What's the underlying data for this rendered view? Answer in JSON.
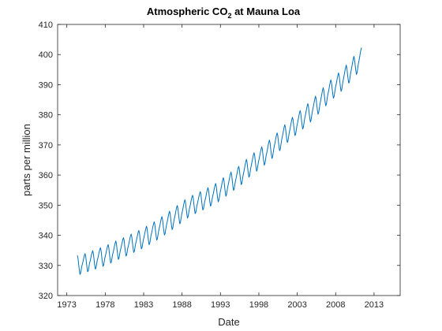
{
  "chart_data": {
    "type": "line",
    "title": {
      "pre": "Atmospheric CO",
      "sub": "2",
      "post": " at Mauna Loa"
    },
    "xlabel": "Date",
    "ylabel": "parts per million",
    "xlim": [
      1971.8,
      2016.4
    ],
    "ylim": [
      320,
      410
    ],
    "x_ticks": [
      1973,
      1978,
      1983,
      1988,
      1993,
      1998,
      2003,
      2008,
      2013
    ],
    "y_ticks": [
      320,
      330,
      340,
      350,
      360,
      370,
      380,
      390,
      400,
      410
    ],
    "grid": false,
    "series": [
      {
        "color": "#0072bd",
        "x_start": 1974.375,
        "x_step": 0.083333,
        "values": [
          333.3,
          332.3,
          330.3,
          328.5,
          327.0,
          327.4,
          328.7,
          329.8,
          330.6,
          331.5,
          332.5,
          333.4,
          333.9,
          333.0,
          331.1,
          329.3,
          327.9,
          328.2,
          329.5,
          330.7,
          331.5,
          332.5,
          333.5,
          334.3,
          334.9,
          333.9,
          332.0,
          330.2,
          328.8,
          329.1,
          330.4,
          331.6,
          332.4,
          333.4,
          334.4,
          335.3,
          335.9,
          334.9,
          332.9,
          331.1,
          329.7,
          330.1,
          331.4,
          332.6,
          333.4,
          334.4,
          335.4,
          336.3,
          336.9,
          336.0,
          334.0,
          332.2,
          330.8,
          331.1,
          332.4,
          333.6,
          334.4,
          335.4,
          336.5,
          337.4,
          338.1,
          337.2,
          335.2,
          333.4,
          332.0,
          332.4,
          333.7,
          334.9,
          335.7,
          336.7,
          337.7,
          338.6,
          339.2,
          338.3,
          336.3,
          334.5,
          333.1,
          333.5,
          334.8,
          336.0,
          336.8,
          337.8,
          338.9,
          339.8,
          340.4,
          339.5,
          337.5,
          335.7,
          334.3,
          334.7,
          336.0,
          337.2,
          338.1,
          339.1,
          340.1,
          341.0,
          341.6,
          340.7,
          338.7,
          336.9,
          335.5,
          335.9,
          337.2,
          338.4,
          339.3,
          340.3,
          341.4,
          342.3,
          343.0,
          342.1,
          340.1,
          338.3,
          336.9,
          337.3,
          338.6,
          339.9,
          340.8,
          341.8,
          342.9,
          343.8,
          344.5,
          343.6,
          341.6,
          339.8,
          338.4,
          338.9,
          340.2,
          341.5,
          342.4,
          343.4,
          344.5,
          345.5,
          346.2,
          345.3,
          343.3,
          341.5,
          340.1,
          340.6,
          341.9,
          343.2,
          344.1,
          345.2,
          346.3,
          347.3,
          348.0,
          347.1,
          345.1,
          343.3,
          341.9,
          342.4,
          343.8,
          345.1,
          346.0,
          347.1,
          348.2,
          349.2,
          349.9,
          349.0,
          347.0,
          345.2,
          343.8,
          344.3,
          345.7,
          347.0,
          347.9,
          349.0,
          350.1,
          351.1,
          351.8,
          350.9,
          348.9,
          347.1,
          345.7,
          346.2,
          347.5,
          348.8,
          349.7,
          350.7,
          351.8,
          352.7,
          353.3,
          352.4,
          350.4,
          348.6,
          347.2,
          347.6,
          348.9,
          350.1,
          351.0,
          352.0,
          353.0,
          353.9,
          354.5,
          353.6,
          351.6,
          349.8,
          348.4,
          348.8,
          350.1,
          351.3,
          352.1,
          353.1,
          354.2,
          355.1,
          355.8,
          354.9,
          352.9,
          351.1,
          349.7,
          350.1,
          351.4,
          352.6,
          353.5,
          354.5,
          355.6,
          356.5,
          357.2,
          356.3,
          354.3,
          352.5,
          351.1,
          351.6,
          352.9,
          354.2,
          355.1,
          356.2,
          357.3,
          358.3,
          359.1,
          358.2,
          356.2,
          354.4,
          353.0,
          353.5,
          354.9,
          356.2,
          357.1,
          358.2,
          359.3,
          360.3,
          361.0,
          360.1,
          358.1,
          356.3,
          354.9,
          355.4,
          356.8,
          358.1,
          359.0,
          360.1,
          361.2,
          362.2,
          362.9,
          362.0,
          360.0,
          358.2,
          356.8,
          357.3,
          358.7,
          360.0,
          361.0,
          362.1,
          363.3,
          364.3,
          365.2,
          364.4,
          362.4,
          360.6,
          359.3,
          359.8,
          361.2,
          362.5,
          363.5,
          364.6,
          365.7,
          366.7,
          367.4,
          366.5,
          364.5,
          362.7,
          361.3,
          361.8,
          363.2,
          364.5,
          365.4,
          366.5,
          367.6,
          368.6,
          369.4,
          368.5,
          366.5,
          364.7,
          363.3,
          363.8,
          365.2,
          366.6,
          367.5,
          368.6,
          369.8,
          370.8,
          371.6,
          370.7,
          368.7,
          366.9,
          365.5,
          366.1,
          367.5,
          368.9,
          369.9,
          371.0,
          372.2,
          373.2,
          374.0,
          373.2,
          371.2,
          369.4,
          368.1,
          368.6,
          370.1,
          371.5,
          372.5,
          373.6,
          374.8,
          375.9,
          376.7,
          375.9,
          373.9,
          372.1,
          370.8,
          371.3,
          372.7,
          374.1,
          375.1,
          376.2,
          377.4,
          378.4,
          379.2,
          378.3,
          376.3,
          374.5,
          373.1,
          373.6,
          375.0,
          376.4,
          377.3,
          378.4,
          379.6,
          380.6,
          381.4,
          380.5,
          378.5,
          376.7,
          375.3,
          375.8,
          377.2,
          378.6,
          379.6,
          380.7,
          381.9,
          382.9,
          383.7,
          382.8,
          380.8,
          379.0,
          377.6,
          378.2,
          379.6,
          381.0,
          382.0,
          383.1,
          384.3,
          385.3,
          386.2,
          385.3,
          383.3,
          381.5,
          380.2,
          380.7,
          382.2,
          383.6,
          384.6,
          385.8,
          387.0,
          388.1,
          389.0,
          388.1,
          386.1,
          384.3,
          383.0,
          383.5,
          385.0,
          386.4,
          387.4,
          388.5,
          389.7,
          390.8,
          391.6,
          390.7,
          388.7,
          386.9,
          385.5,
          386.0,
          387.4,
          388.8,
          389.8,
          390.9,
          392.1,
          393.1,
          393.9,
          393.0,
          391.0,
          389.2,
          387.8,
          388.4,
          389.8,
          391.2,
          392.2,
          393.4,
          394.6,
          395.6,
          396.5,
          395.6,
          393.6,
          391.8,
          390.5,
          391.0,
          392.5,
          394.0,
          395.0,
          396.2,
          397.4,
          398.5,
          399.4,
          398.5,
          396.5,
          394.7,
          393.4,
          394.0,
          395.5,
          397.0,
          398.0,
          399.2,
          400.5,
          401.6,
          402.3
        ]
      }
    ]
  }
}
